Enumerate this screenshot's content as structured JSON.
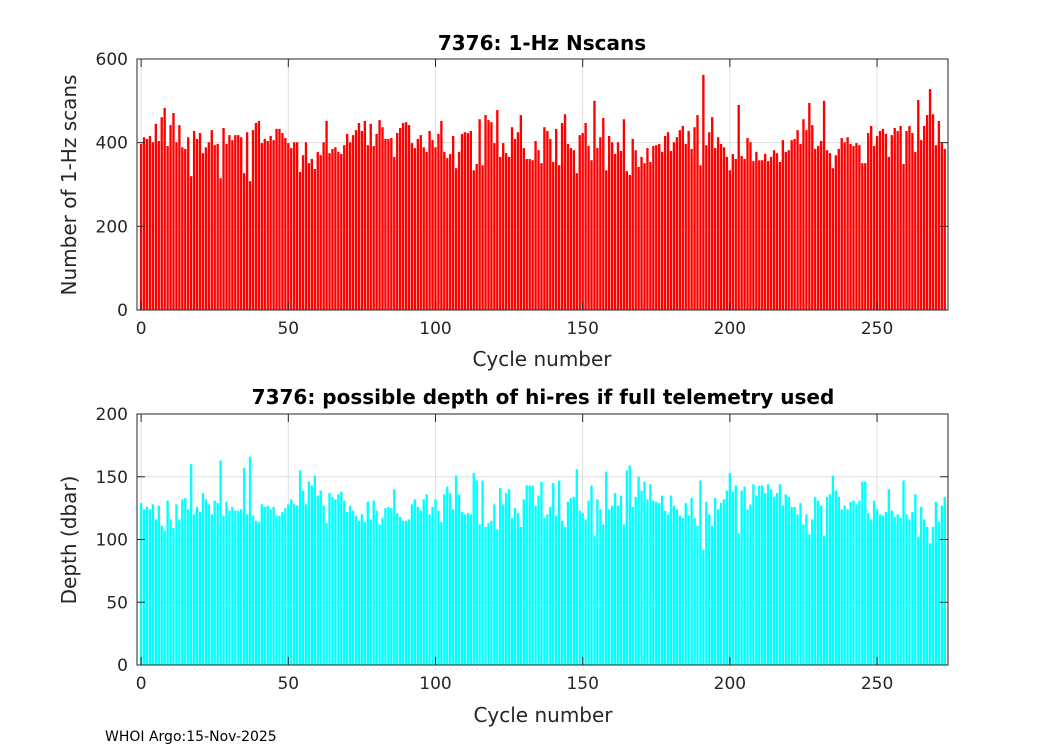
{
  "footer": "WHOI Argo:15-Nov-2025",
  "colors": {
    "top_bars": "#ff0000",
    "bottom_bars": "#00ffff"
  },
  "chart_data": [
    {
      "type": "bar",
      "title": "7376: 1-Hz Nscans",
      "xlabel": "Cycle number",
      "ylabel": "Number of 1-Hz scans",
      "xlim": [
        -1.4,
        274.1
      ],
      "ylim": [
        0,
        600
      ],
      "xticks": [
        0,
        50,
        100,
        150,
        200,
        250
      ],
      "yticks": [
        0,
        200,
        400,
        600
      ],
      "grid": true,
      "x_start": 0,
      "values": [
        397,
        413,
        409,
        416,
        401,
        445,
        404,
        461,
        483,
        392,
        442,
        471,
        401,
        442,
        389,
        385,
        413,
        320,
        428,
        409,
        423,
        375,
        389,
        401,
        430,
        394,
        397,
        315,
        435,
        397,
        418,
        406,
        418,
        418,
        413,
        327,
        425,
        308,
        430,
        447,
        452,
        399,
        409,
        404,
        416,
        406,
        433,
        433,
        423,
        411,
        399,
        387,
        401,
        401,
        330,
        370,
        401,
        351,
        361,
        337,
        378,
        370,
        401,
        452,
        375,
        385,
        389,
        378,
        373,
        394,
        421,
        401,
        418,
        430,
        447,
        428,
        452,
        394,
        445,
        392,
        421,
        454,
        437,
        409,
        409,
        411,
        366,
        423,
        435,
        447,
        449,
        442,
        399,
        387,
        409,
        418,
        389,
        378,
        428,
        406,
        389,
        421,
        452,
        378,
        363,
        373,
        416,
        339,
        378,
        421,
        425,
        423,
        428,
        334,
        349,
        456,
        346,
        466,
        454,
        449,
        399,
        478,
        366,
        399,
        375,
        366,
        437,
        409,
        425,
        466,
        387,
        361,
        361,
        358,
        404,
        382,
        351,
        437,
        428,
        409,
        354,
        433,
        346,
        447,
        468,
        397,
        387,
        382,
        327,
        418,
        423,
        447,
        392,
        358,
        500,
        387,
        413,
        459,
        334,
        416,
        401,
        373,
        401,
        380,
        456,
        332,
        323,
        409,
        382,
        342,
        366,
        351,
        387,
        354,
        392,
        394,
        397,
        378,
        416,
        425,
        380,
        401,
        413,
        430,
        440,
        397,
        428,
        385,
        437,
        466,
        346,
        562,
        394,
        425,
        461,
        387,
        413,
        397,
        389,
        366,
        334,
        373,
        361,
        490,
        368,
        361,
        411,
        401,
        356,
        378,
        358,
        358,
        373,
        356,
        366,
        382,
        375,
        354,
        406,
        378,
        382,
        406,
        409,
        430,
        397,
        456,
        430,
        495,
        442,
        385,
        392,
        404,
        500,
        382,
        375,
        339,
        370,
        385,
        411,
        401,
        413,
        397,
        392,
        399,
        394,
        351,
        351,
        423,
        440,
        392,
        416,
        428,
        433,
        421,
        366,
        418,
        435,
        428,
        440,
        349,
        428,
        440,
        423,
        378,
        502,
        406,
        440,
        466,
        528,
        468,
        394,
        452,
        399,
        385
      ]
    },
    {
      "type": "bar",
      "title": "7376: possible depth of hi-res if full telemetry used",
      "xlabel": "Cycle number",
      "ylabel": "Depth (dbar)",
      "xlim": [
        -1.4,
        274.1
      ],
      "ylim": [
        0,
        200
      ],
      "xticks": [
        0,
        50,
        100,
        150,
        200,
        250
      ],
      "yticks": [
        0,
        50,
        100,
        150,
        200
      ],
      "grid": true,
      "x_start": 0,
      "values": [
        129,
        124,
        126,
        124,
        128,
        116,
        127,
        111,
        107,
        131,
        116,
        109,
        128,
        116,
        132,
        133,
        124,
        160,
        120,
        126,
        122,
        137,
        132,
        128,
        120,
        131,
        129,
        163,
        119,
        130,
        123,
        126,
        123,
        123,
        124,
        157,
        120,
        166,
        119,
        115,
        114,
        128,
        126,
        127,
        124,
        126,
        119,
        119,
        122,
        125,
        128,
        132,
        128,
        127,
        155,
        139,
        128,
        146,
        143,
        151,
        135,
        139,
        127,
        113,
        137,
        134,
        132,
        136,
        138,
        131,
        122,
        127,
        123,
        119,
        115,
        120,
        114,
        130,
        116,
        131,
        123,
        112,
        117,
        125,
        126,
        125,
        140,
        121,
        118,
        115,
        115,
        116,
        128,
        132,
        126,
        123,
        132,
        136,
        120,
        126,
        132,
        123,
        114,
        136,
        142,
        137,
        124,
        151,
        136,
        122,
        120,
        121,
        120,
        153,
        147,
        112,
        147,
        110,
        113,
        115,
        128,
        108,
        141,
        128,
        137,
        140,
        117,
        125,
        121,
        110,
        132,
        143,
        143,
        143,
        127,
        135,
        146,
        117,
        120,
        126,
        145,
        119,
        147,
        115,
        110,
        130,
        133,
        134,
        156,
        123,
        121,
        116,
        131,
        143,
        103,
        132,
        124,
        112,
        154,
        124,
        127,
        137,
        127,
        135,
        112,
        155,
        159,
        126,
        134,
        150,
        139,
        146,
        132,
        144,
        131,
        130,
        129,
        135,
        123,
        120,
        135,
        127,
        124,
        119,
        117,
        129,
        119,
        133,
        117,
        111,
        147,
        92,
        130,
        120,
        111,
        133,
        124,
        129,
        132,
        139,
        153,
        138,
        143,
        105,
        139,
        142,
        124,
        128,
        144,
        135,
        143,
        143,
        137,
        144,
        140,
        134,
        137,
        144,
        127,
        136,
        134,
        126,
        126,
        120,
        129,
        112,
        120,
        104,
        116,
        134,
        131,
        127,
        103,
        134,
        136,
        151,
        139,
        134,
        124,
        127,
        124,
        130,
        131,
        128,
        131,
        146,
        146,
        121,
        116,
        131,
        124,
        120,
        119,
        122,
        140,
        123,
        118,
        120,
        117,
        147,
        120,
        116,
        122,
        136,
        102,
        126,
        116,
        110,
        97,
        110,
        130,
        114,
        127,
        134
      ]
    }
  ]
}
